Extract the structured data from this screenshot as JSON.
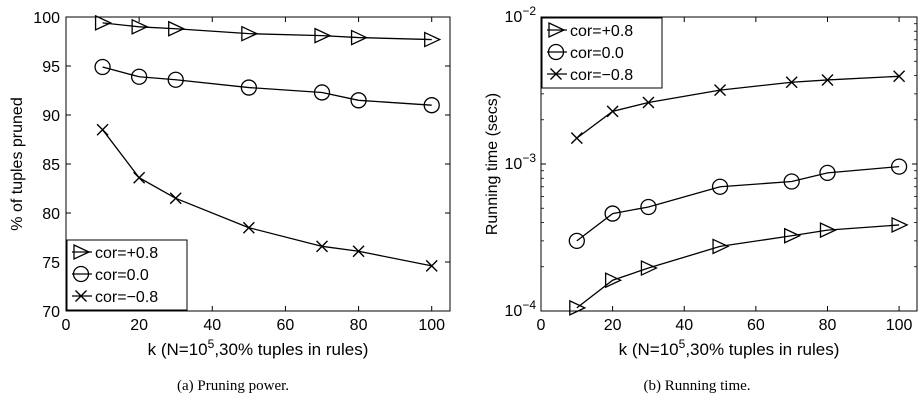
{
  "chart_data": [
    {
      "type": "line",
      "caption": "(a) Pruning power.",
      "ylabel": "% of tuples pruned",
      "xlabel_parts": {
        "before": "k (N=10",
        "sup": "5",
        "after": ",30% tuples in rules)"
      },
      "xlim": [
        0,
        105
      ],
      "ylim": [
        70,
        100
      ],
      "y_scale": "linear",
      "x_ticks": [
        0,
        20,
        40,
        60,
        80,
        100
      ],
      "x_tick_labels": [
        "0",
        "20",
        "40",
        "60",
        "80",
        "100"
      ],
      "y_ticks": [
        70,
        75,
        80,
        85,
        90,
        95,
        100
      ],
      "y_tick_labels": [
        "70",
        "75",
        "80",
        "85",
        "90",
        "95",
        "100"
      ],
      "x": [
        10,
        20,
        30,
        50,
        70,
        80,
        100
      ],
      "series": [
        {
          "name": "cor=+0.8",
          "marker": "triangle-right",
          "values": [
            99.4,
            99.0,
            98.8,
            98.3,
            98.1,
            97.9,
            97.7
          ]
        },
        {
          "name": "cor=0.0",
          "marker": "circle",
          "values": [
            94.9,
            93.9,
            93.6,
            92.8,
            92.3,
            91.5,
            91.0
          ]
        },
        {
          "name": "cor=−0.8",
          "marker": "x",
          "values": [
            88.5,
            83.6,
            81.5,
            78.5,
            76.6,
            76.1,
            74.6
          ]
        }
      ],
      "legend_position": "bottom-left",
      "grid": false
    },
    {
      "type": "line",
      "caption": "(b) Running time.",
      "ylabel": "Running time (secs)",
      "xlabel_parts": {
        "before": "k (N=10",
        "sup": "5",
        "after": ",30% tuples in rules)"
      },
      "xlim": [
        0,
        105
      ],
      "ylim": [
        0.0001,
        0.01
      ],
      "y_scale": "log",
      "x_ticks": [
        0,
        20,
        40,
        60,
        80,
        100
      ],
      "x_tick_labels": [
        "0",
        "20",
        "40",
        "60",
        "80",
        "100"
      ],
      "y_ticks": [
        0.0001,
        0.001,
        0.01
      ],
      "y_tick_labels": [
        {
          "base": "10",
          "exp": "−4"
        },
        {
          "base": "10",
          "exp": "−3"
        },
        {
          "base": "10",
          "exp": "−2"
        }
      ],
      "x": [
        10,
        20,
        30,
        50,
        70,
        80,
        100
      ],
      "series": [
        {
          "name": "cor=+0.8",
          "marker": "triangle-right",
          "values": [
            0.000105,
            0.000162,
            0.000196,
            0.000275,
            0.000325,
            0.000355,
            0.000385
          ]
        },
        {
          "name": "cor=0.0",
          "marker": "circle",
          "values": [
            0.0003,
            0.00046,
            0.00051,
            0.0007,
            0.00076,
            0.00087,
            0.00096
          ]
        },
        {
          "name": "cor=−0.8",
          "marker": "x",
          "values": [
            0.0015,
            0.00228,
            0.00262,
            0.00318,
            0.0036,
            0.00373,
            0.00395
          ]
        }
      ],
      "legend_position": "top-left",
      "grid": false
    }
  ]
}
